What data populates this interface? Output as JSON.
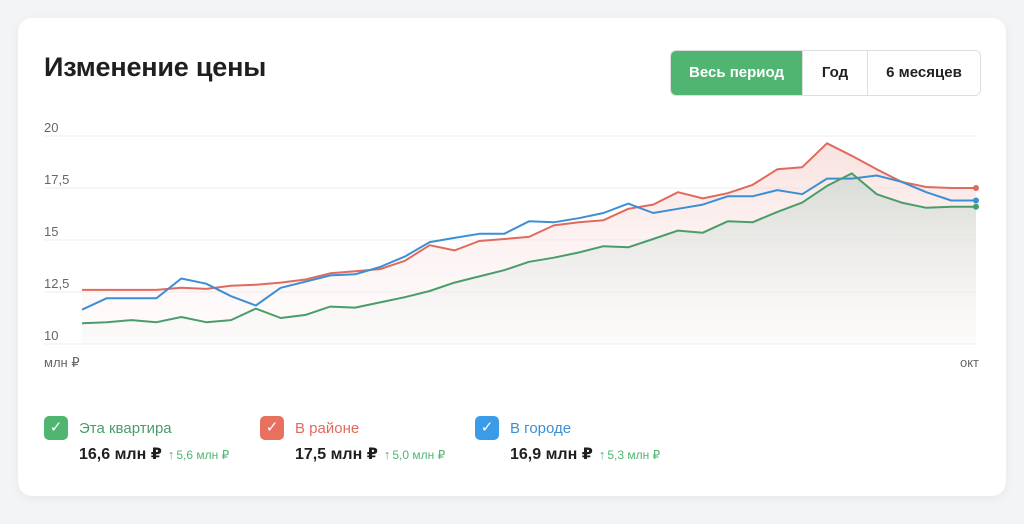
{
  "title": "Изменение цены",
  "tabs": [
    {
      "label": "Весь период",
      "active": true
    },
    {
      "label": "Год",
      "active": false
    },
    {
      "label": "6 месяцев",
      "active": false
    }
  ],
  "chart_data": {
    "type": "line",
    "x_labels": [
      "млн ₽",
      "окт"
    ],
    "y_ticks": [
      "10",
      "12,5",
      "15",
      "17,5",
      "20"
    ],
    "ylim": [
      10,
      20
    ],
    "grid": true,
    "series": [
      {
        "name": "Эта квартира",
        "color": "#4a9d6a",
        "values": [
          11.0,
          11.05,
          11.15,
          11.05,
          11.3,
          11.05,
          11.15,
          11.7,
          11.25,
          11.4,
          11.8,
          11.75,
          12.0,
          12.25,
          12.55,
          12.95,
          13.25,
          13.55,
          13.95,
          14.15,
          14.4,
          14.7,
          14.65,
          15.05,
          15.45,
          15.35,
          15.9,
          15.85,
          16.35,
          16.8,
          17.6,
          18.2,
          17.2,
          16.8,
          16.55,
          16.6,
          16.6
        ]
      },
      {
        "name": "В районе",
        "color": "#e06a5c",
        "values": [
          12.6,
          12.6,
          12.6,
          12.6,
          12.7,
          12.65,
          12.8,
          12.85,
          12.95,
          13.1,
          13.4,
          13.5,
          13.6,
          14.0,
          14.75,
          14.5,
          14.95,
          15.05,
          15.15,
          15.7,
          15.85,
          15.95,
          16.5,
          16.7,
          17.3,
          17.0,
          17.25,
          17.65,
          18.4,
          18.5,
          19.65,
          19.05,
          18.4,
          17.8,
          17.55,
          17.5,
          17.5
        ]
      },
      {
        "name": "В городе",
        "color": "#3d8fd4",
        "values": [
          11.65,
          12.2,
          12.2,
          12.2,
          13.15,
          12.9,
          12.3,
          11.85,
          12.7,
          13.0,
          13.3,
          13.35,
          13.7,
          14.2,
          14.9,
          15.1,
          15.3,
          15.3,
          15.9,
          15.85,
          16.05,
          16.3,
          16.75,
          16.3,
          16.5,
          16.7,
          17.1,
          17.1,
          17.4,
          17.2,
          17.95,
          17.95,
          18.1,
          17.8,
          17.3,
          16.9,
          16.9
        ]
      }
    ]
  },
  "legend": [
    {
      "name": "Эта квартира",
      "value": "16,6 млн ₽",
      "delta": "5,6 млн ₽",
      "color": "#4fb571",
      "text_color": "#4a9d6a"
    },
    {
      "name": "В районе",
      "value": "17,5 млн ₽",
      "delta": "5,0 млн ₽",
      "color": "#e8705f",
      "text_color": "#e06a5c"
    },
    {
      "name": "В городе",
      "value": "16,9 млн ₽",
      "delta": "5,3 млн ₽",
      "color": "#3a9be8",
      "text_color": "#3d8fd4"
    }
  ]
}
